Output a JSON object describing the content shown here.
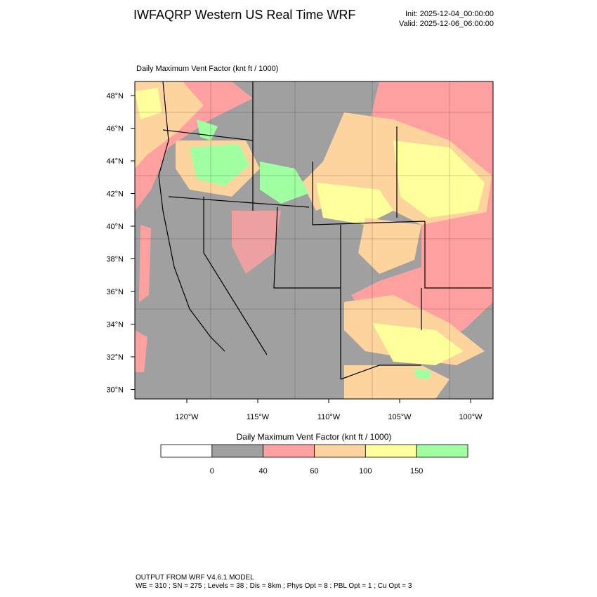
{
  "header": {
    "title": "IWFAQRP Western US Real Time WRF",
    "init": "Init: 2025-12-04_00:00:00",
    "valid": "Valid: 2025-12-06_06:00:00"
  },
  "map": {
    "title": "Daily Maximum Vent Factor   (knt ft / 1000)",
    "lat_labels": [
      "48°N",
      "46°N",
      "44°N",
      "42°N",
      "40°N",
      "38°N",
      "36°N",
      "34°N",
      "32°N",
      "30°N"
    ],
    "lon_labels": [
      "120°W",
      "115°W",
      "110°W",
      "105°W",
      "100°W"
    ]
  },
  "colorbar": {
    "title": "Daily Maximum Vent Factor  (knt ft / 1000)",
    "colors": [
      "#ffffff",
      "#a0a0a0",
      "#ffa0a0",
      "#fdd49e",
      "#ffff9c",
      "#a0ffa0"
    ],
    "labels": [
      "0",
      "40",
      "60",
      "100",
      "150"
    ]
  },
  "footer": {
    "line1": "OUTPUT FROM WRF V4.6.1 MODEL",
    "line2": "WE = 310 ; SN = 275 ; Levels = 38 ; Dis = 8km ; Phys Opt = 8 ; PBL Opt = 1 ; Cu Opt = 3"
  }
}
